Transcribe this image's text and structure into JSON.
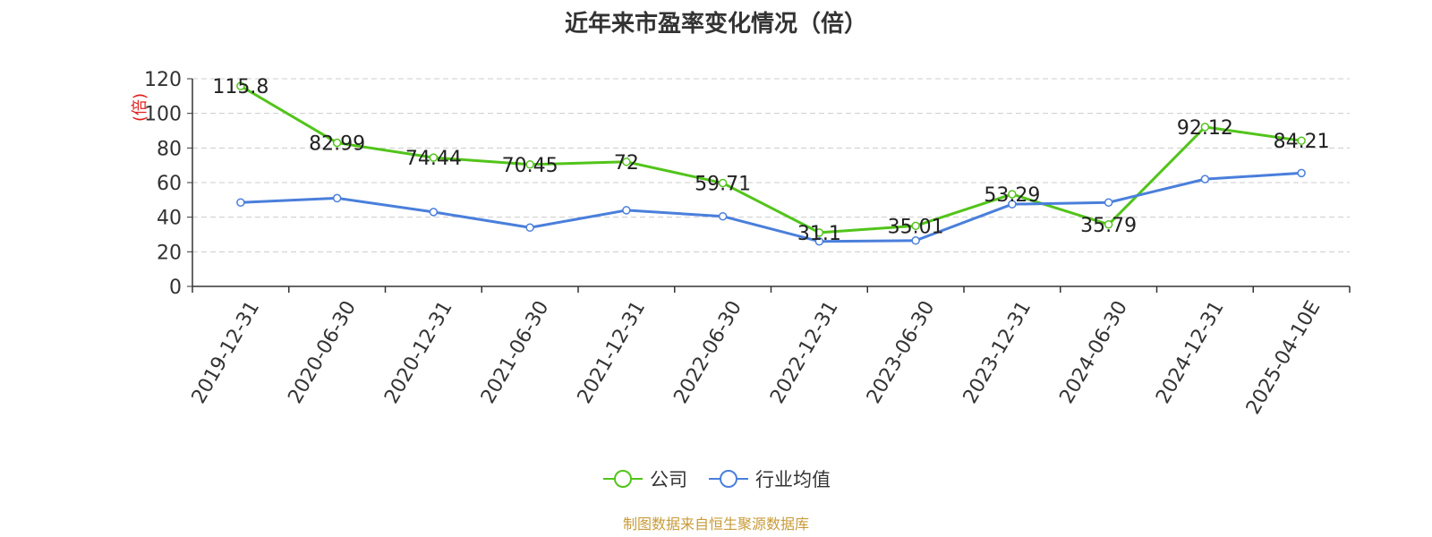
{
  "chart_data": {
    "type": "line",
    "title": "近年来市盈率变化情况（倍）",
    "ylabel": "(倍)",
    "xlabel": "",
    "categories": [
      "2019-12-31",
      "2020-06-30",
      "2020-12-31",
      "2021-06-30",
      "2021-12-31",
      "2022-06-30",
      "2022-12-31",
      "2023-06-30",
      "2023-12-31",
      "2024-06-30",
      "2024-12-31",
      "2025-04-10E"
    ],
    "yticks": [
      "0",
      "20",
      "40",
      "60",
      "80",
      "100",
      "120"
    ],
    "ylim": [
      0,
      120
    ],
    "grid": true,
    "legend_position": "bottom",
    "series": [
      {
        "name": "公司",
        "color": "#52c41a",
        "values": [
          115.8,
          82.99,
          74.44,
          70.45,
          72,
          59.71,
          31.1,
          35.01,
          53.29,
          35.79,
          92.12,
          84.21
        ],
        "labels": [
          "115.8",
          "82.99",
          "74.44",
          "70.45",
          "72",
          "59.71",
          "31.1",
          "35.01",
          "53.29",
          "35.79",
          "92.12",
          "84.21"
        ]
      },
      {
        "name": "行业均值",
        "color": "#4a7fdb",
        "values": [
          48.5,
          51,
          43,
          34,
          44,
          40.5,
          26,
          26.5,
          47.5,
          48.5,
          62,
          65.5
        ]
      }
    ]
  },
  "source": "制图数据来自恒生聚源数据库"
}
